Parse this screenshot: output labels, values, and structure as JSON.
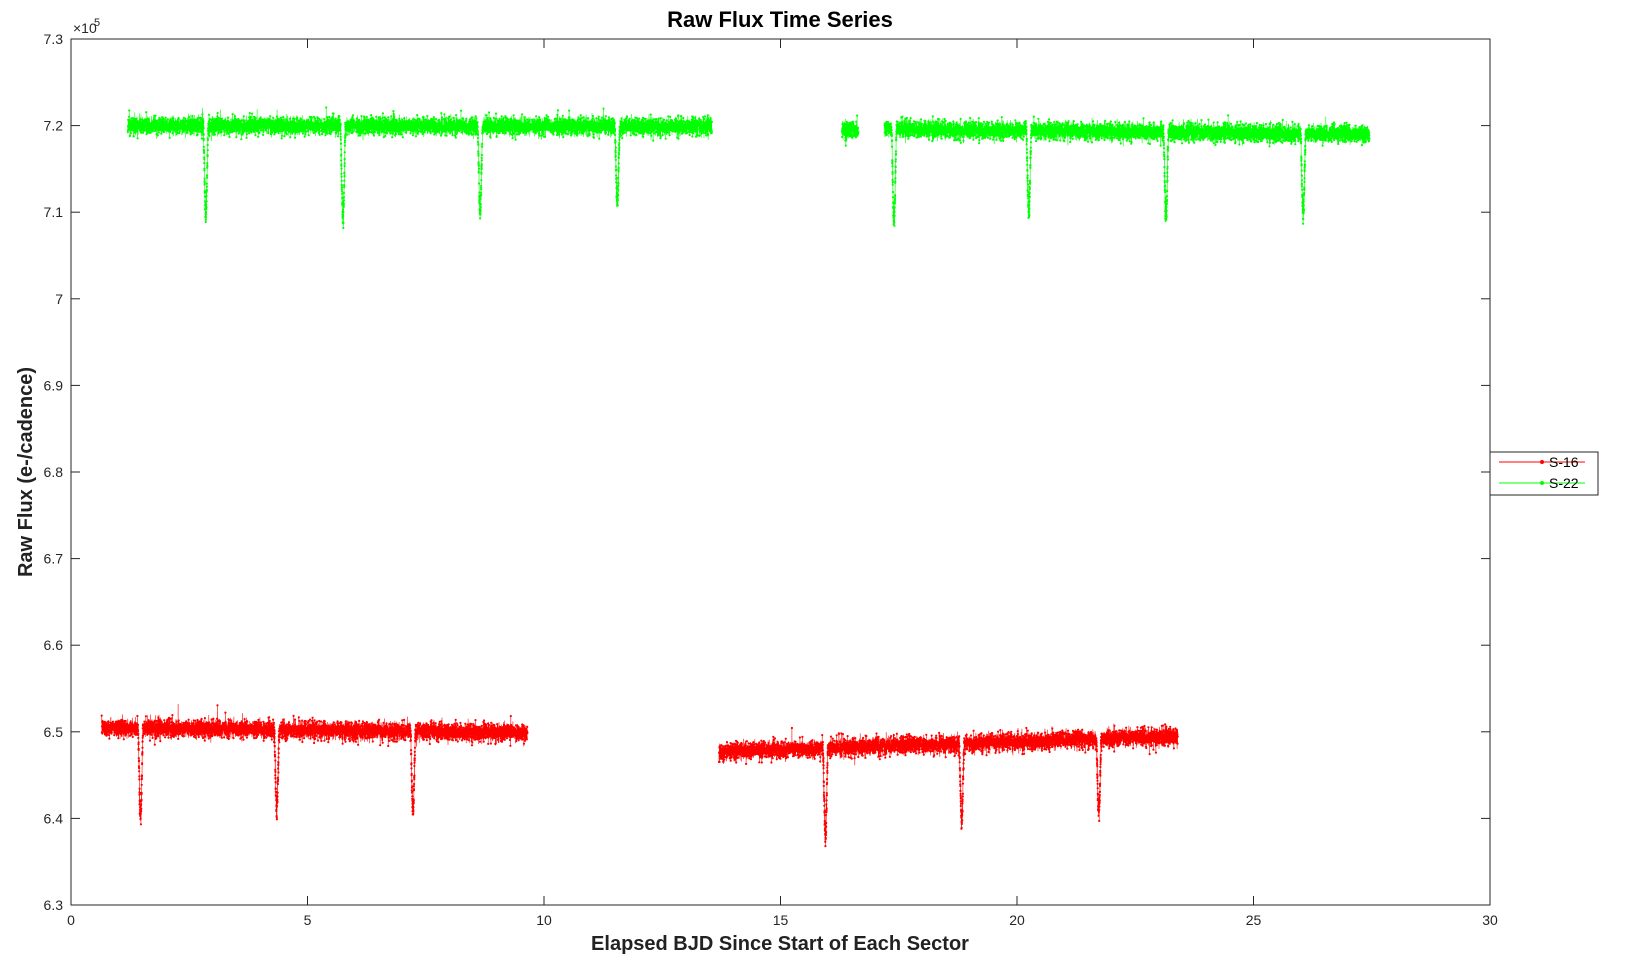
{
  "chart_data": {
    "type": "line",
    "title": "Raw Flux Time Series",
    "xlabel": "Elapsed BJD Since Start of Each Sector",
    "ylabel": "Raw Flux (e-/cadence)",
    "exponent_label": "×10",
    "exponent_power": "5",
    "xlim": [
      0,
      30
    ],
    "ylim": [
      6.3,
      7.3
    ],
    "y_scale_factor": 100000,
    "x_ticks": [
      0,
      5,
      10,
      15,
      20,
      25,
      30
    ],
    "x_tick_labels": [
      "0",
      "5",
      "10",
      "15",
      "20",
      "25",
      "30"
    ],
    "y_ticks": [
      6.3,
      6.4,
      6.5,
      6.6,
      6.7,
      6.8,
      6.9,
      7.0,
      7.1,
      7.2,
      7.3
    ],
    "y_tick_labels": [
      "6.3",
      "6.4",
      "6.5",
      "6.6",
      "6.7",
      "6.8",
      "6.9",
      "7",
      "7.1",
      "7.2",
      "7.3"
    ],
    "grid": false,
    "legend_position": "right",
    "series": [
      {
        "name": "S-16",
        "color": "#ff0000",
        "segments": [
          {
            "x_start": 0.65,
            "x_end": 9.65,
            "level_start": 6.505,
            "level_end": 6.499,
            "noise": 0.009
          },
          {
            "x_start": 13.7,
            "x_end": 23.4,
            "level_start": 6.477,
            "level_end": 6.495,
            "noise": 0.009
          }
        ],
        "transits": [
          {
            "x": 1.47,
            "depth": 0.11
          },
          {
            "x": 4.35,
            "depth": 0.1
          },
          {
            "x": 7.23,
            "depth": 0.1
          },
          {
            "x": 15.95,
            "depth": 0.11
          },
          {
            "x": 18.83,
            "depth": 0.095
          },
          {
            "x": 21.73,
            "depth": 0.09
          }
        ]
      },
      {
        "name": "S-22",
        "color": "#00ff00",
        "segments": [
          {
            "x_start": 1.2,
            "x_end": 13.55,
            "level_start": 7.2,
            "level_end": 7.199,
            "noise": 0.009
          },
          {
            "x_start": 16.3,
            "x_end": 16.65,
            "level_start": 7.195,
            "level_end": 7.193,
            "noise": 0.01
          },
          {
            "x_start": 17.2,
            "x_end": 27.45,
            "level_start": 7.196,
            "level_end": 7.19,
            "noise": 0.009
          }
        ],
        "transits": [
          {
            "x": 2.85,
            "depth": 0.11
          },
          {
            "x": 5.75,
            "depth": 0.115
          },
          {
            "x": 8.65,
            "depth": 0.105
          },
          {
            "x": 11.55,
            "depth": 0.095
          },
          {
            "x": 17.4,
            "depth": 0.115
          },
          {
            "x": 20.25,
            "depth": 0.1
          },
          {
            "x": 23.15,
            "depth": 0.105
          },
          {
            "x": 26.05,
            "depth": 0.1
          }
        ]
      }
    ]
  }
}
